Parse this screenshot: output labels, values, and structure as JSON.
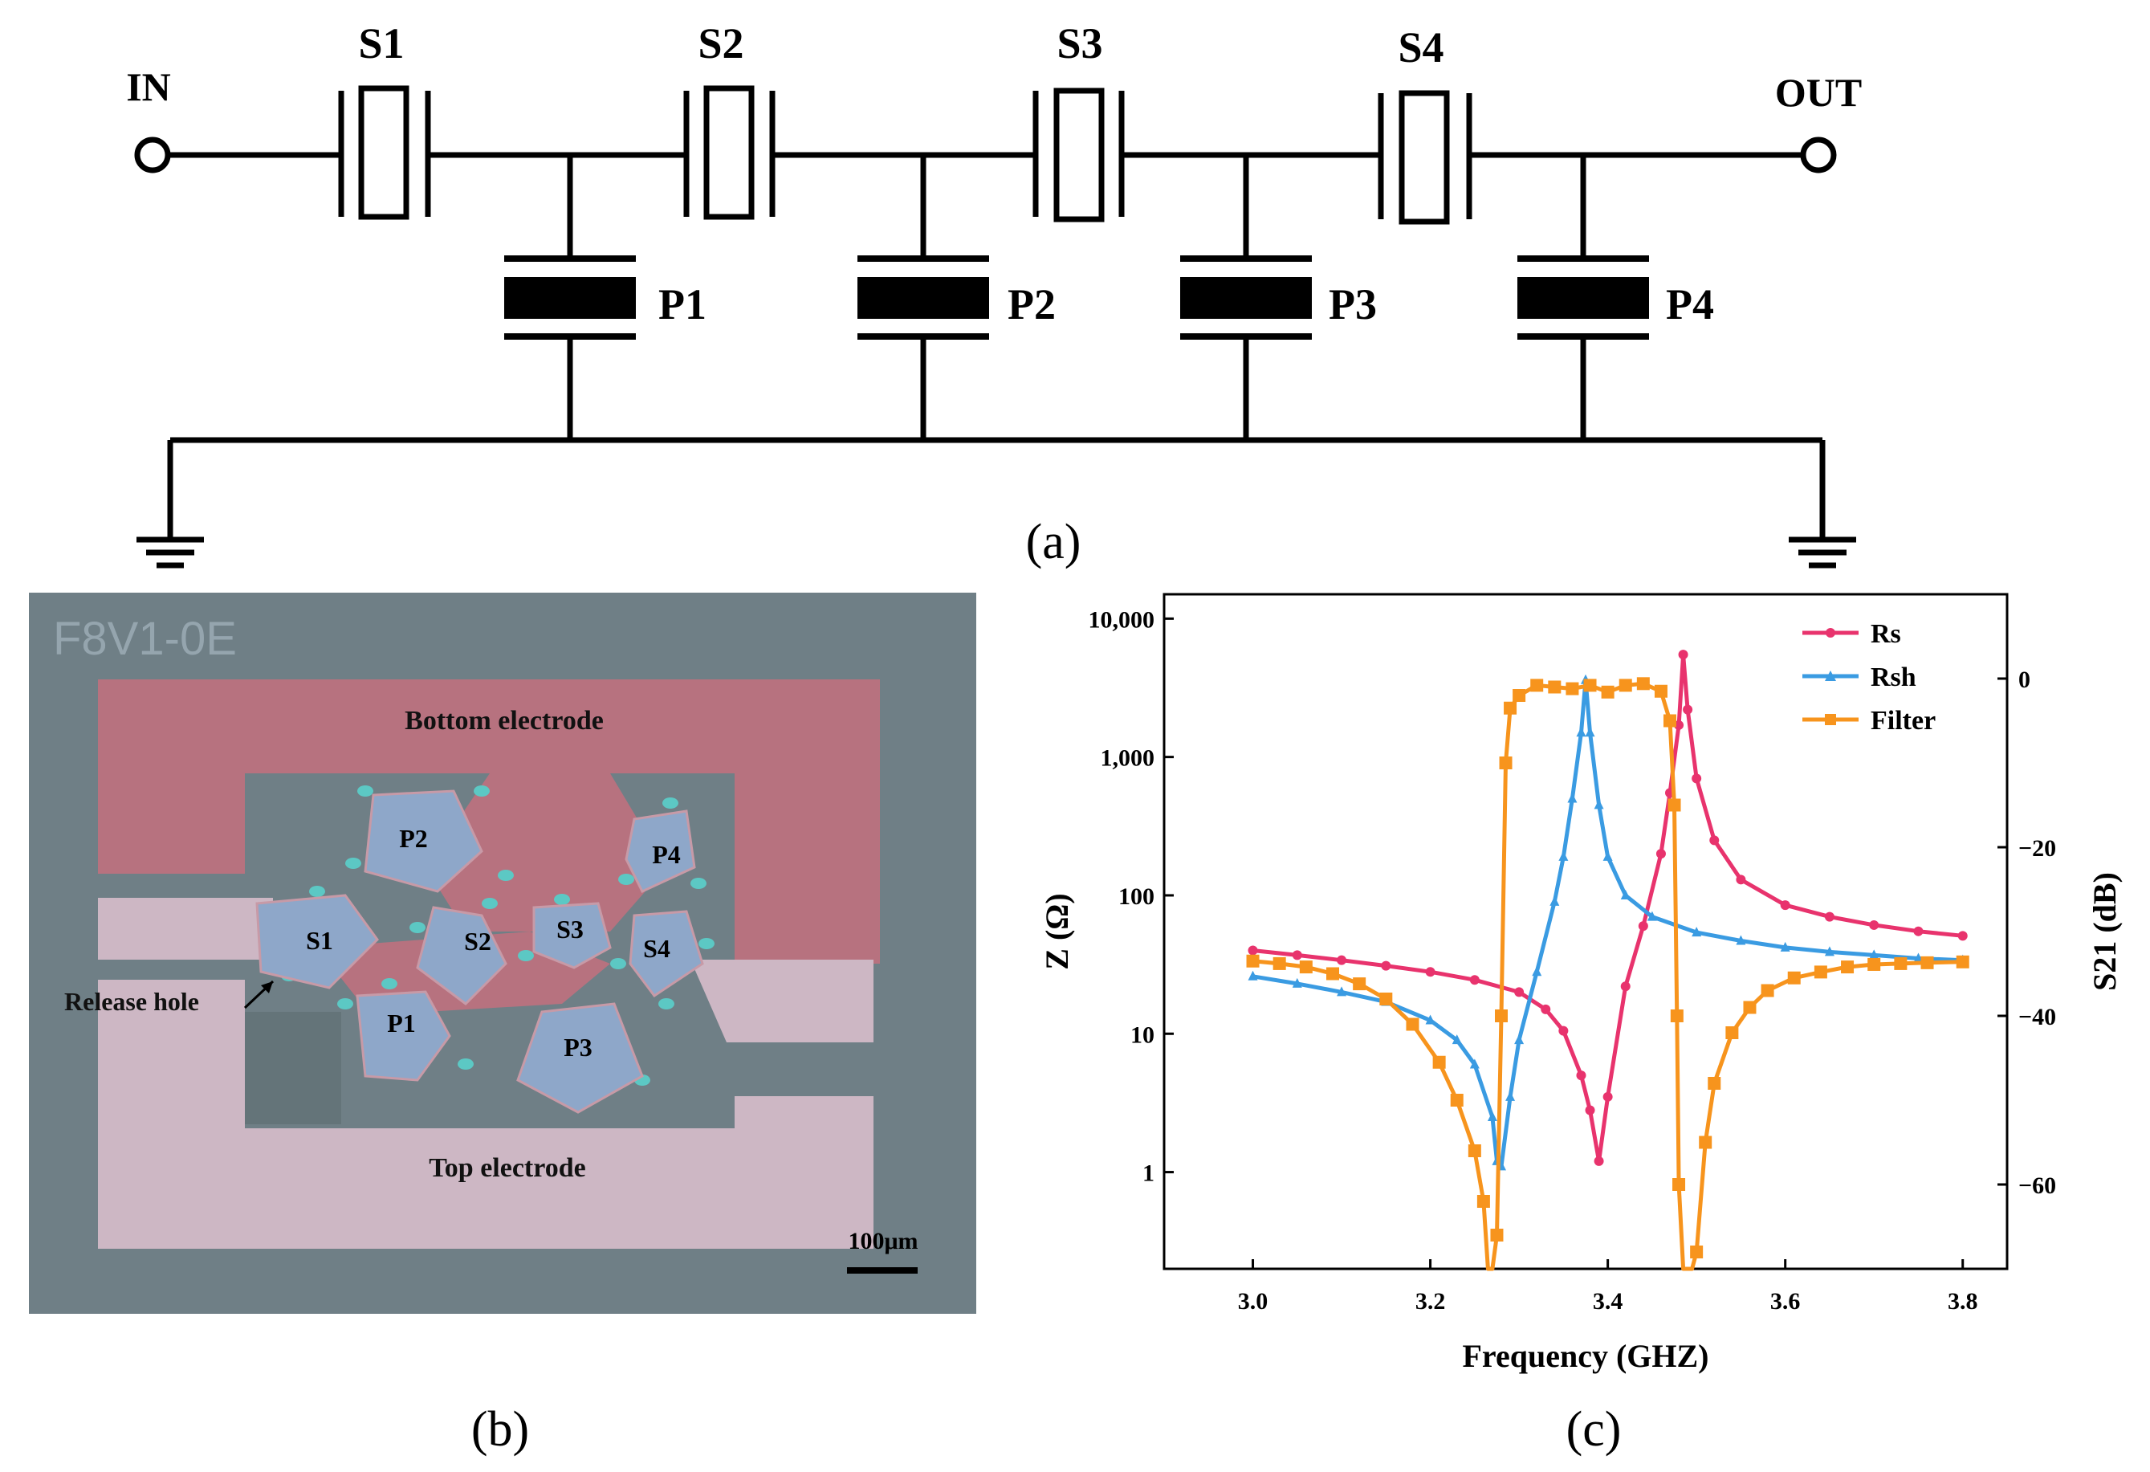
{
  "circuit": {
    "input_label": "IN",
    "output_label": "OUT",
    "series_labels": [
      "S1",
      "S2",
      "S3",
      "S4"
    ],
    "shunt_labels": [
      "P1",
      "P2",
      "P3",
      "P4"
    ],
    "caption": "(a)"
  },
  "micrograph": {
    "chip_id": "F8V1-0E",
    "bottom_electrode_label": "Bottom electrode",
    "top_electrode_label": "Top electrode",
    "release_hole_label": "Release hole",
    "scale_bar_label": "100μm",
    "resonators": {
      "P2": "P2",
      "P4": "P4",
      "S1": "S1",
      "S2": "S2",
      "S3": "S3",
      "S4": "S4",
      "P1": "P1",
      "P3": "P3"
    },
    "colors": {
      "background": "#6f7f86",
      "bottom_electrode": "#b7727f",
      "top_electrode": "#cdb7c4",
      "resonator": "#8ea7c9",
      "release_hole": "#5cc8c4"
    },
    "caption": "(b)"
  },
  "chart_data": {
    "type": "line",
    "xlabel": "Frequency (GHZ)",
    "ylabel_left": "Z (Ω)",
    "ylabel_right": "S21 (dB)",
    "xlim": [
      2.9,
      3.85
    ],
    "ylim_left": [
      0.2,
      15000
    ],
    "ylim_right": [
      -70,
      10
    ],
    "yscale_left": "log",
    "x_ticks": [
      3.0,
      3.2,
      3.4,
      3.6,
      3.8
    ],
    "x_tick_labels": [
      "3.0",
      "3.2",
      "3.4",
      "3.6",
      "3.8"
    ],
    "y_left_ticks": [
      1,
      10,
      100,
      1000,
      10000
    ],
    "y_left_tick_labels": [
      "1",
      "10",
      "100",
      "1,000",
      "10,000"
    ],
    "y_right_ticks": [
      0,
      -20,
      -40,
      -60
    ],
    "y_right_tick_labels": [
      "0",
      "−20",
      "−40",
      "−60"
    ],
    "legend_position": "top-right",
    "series": [
      {
        "name": "Rs",
        "axis": "left",
        "color": "#e8336d",
        "marker": "circle",
        "x": [
          3.0,
          3.05,
          3.1,
          3.15,
          3.2,
          3.25,
          3.3,
          3.33,
          3.35,
          3.37,
          3.38,
          3.39,
          3.4,
          3.42,
          3.44,
          3.46,
          3.47,
          3.48,
          3.485,
          3.49,
          3.5,
          3.52,
          3.55,
          3.6,
          3.65,
          3.7,
          3.75,
          3.8
        ],
        "values": [
          40,
          37,
          34,
          31,
          28,
          24.5,
          20,
          15,
          10.5,
          5,
          2.8,
          1.2,
          3.5,
          22,
          60,
          200,
          550,
          1700,
          5500,
          2200,
          700,
          250,
          130,
          85,
          70,
          61,
          55,
          51
        ]
      },
      {
        "name": "Rsh",
        "axis": "left",
        "color": "#3a9be2",
        "marker": "triangle",
        "x": [
          3.0,
          3.05,
          3.1,
          3.15,
          3.2,
          3.23,
          3.25,
          3.27,
          3.275,
          3.28,
          3.29,
          3.3,
          3.32,
          3.34,
          3.35,
          3.36,
          3.37,
          3.375,
          3.38,
          3.39,
          3.4,
          3.42,
          3.45,
          3.5,
          3.55,
          3.6,
          3.65,
          3.7,
          3.75,
          3.8
        ],
        "values": [
          26,
          23,
          20,
          17,
          12.5,
          9,
          6,
          2.5,
          1.2,
          1.1,
          3.5,
          9,
          28,
          90,
          190,
          500,
          1500,
          3600,
          1500,
          450,
          190,
          100,
          70,
          54,
          47,
          42,
          39,
          37,
          35,
          34
        ]
      },
      {
        "name": "Filter",
        "axis": "right",
        "color": "#f7941d",
        "marker": "square",
        "x": [
          3.0,
          3.03,
          3.06,
          3.09,
          3.12,
          3.15,
          3.18,
          3.21,
          3.23,
          3.25,
          3.26,
          3.265,
          3.27,
          3.275,
          3.28,
          3.285,
          3.29,
          3.3,
          3.32,
          3.34,
          3.36,
          3.38,
          3.4,
          3.42,
          3.44,
          3.46,
          3.47,
          3.475,
          3.478,
          3.48,
          3.485,
          3.49,
          3.495,
          3.5,
          3.51,
          3.52,
          3.54,
          3.56,
          3.58,
          3.61,
          3.64,
          3.67,
          3.7,
          3.73,
          3.76,
          3.8
        ],
        "values": [
          -33.5,
          -33.8,
          -34.2,
          -35,
          -36.2,
          -38,
          -41,
          -45.5,
          -50,
          -56,
          -62,
          -70,
          -70,
          -66,
          -40,
          -10,
          -3.5,
          -2.0,
          -0.8,
          -1.0,
          -1.2,
          -0.8,
          -1.6,
          -0.8,
          -0.6,
          -1.5,
          -5,
          -15,
          -40,
          -60,
          -70,
          -70,
          -70,
          -68,
          -55,
          -48,
          -42,
          -39,
          -37,
          -35.5,
          -34.8,
          -34.2,
          -33.9,
          -33.8,
          -33.7,
          -33.6
        ]
      }
    ],
    "caption": "(c)"
  }
}
